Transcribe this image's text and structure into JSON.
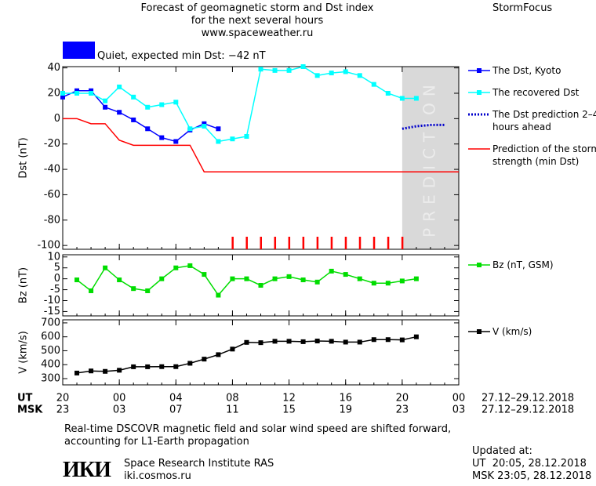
{
  "header": {
    "title": "Forecast of geomagnetic storm and Dst index",
    "subtitle": "for the next several hours",
    "url": "www.spaceweather.ru",
    "brand": "StormFocus"
  },
  "status": {
    "text": "Quiet, expected min Dst: −42 nT",
    "color": "#0000ff"
  },
  "chart_data": [
    {
      "type": "line",
      "ylabel": "Dst (nT)",
      "xlim": [
        0,
        28
      ],
      "ylim": [
        -103,
        41
      ],
      "yticks": [
        40,
        20,
        0,
        -20,
        -40,
        -60,
        -80,
        -100
      ],
      "prediction_region": {
        "x": [
          24,
          28
        ],
        "label": "PREDICTION",
        "color": "#d9d9d9"
      },
      "storm_marks": {
        "x": [
          12,
          13,
          14,
          15,
          16,
          17,
          18,
          19,
          20,
          21,
          22,
          23,
          24
        ],
        "color": "#ff0000"
      },
      "series": [
        {
          "name": "The Dst, Kyoto",
          "color": "#0000ff",
          "style": "solid",
          "marker": true,
          "x": [
            0,
            1,
            2,
            3,
            4,
            5,
            6,
            7,
            8,
            9,
            10,
            11
          ],
          "values": [
            17,
            22,
            22,
            9,
            5,
            -1,
            -8,
            -15,
            -18,
            -9,
            -4,
            -8
          ]
        },
        {
          "name": "The recovered Dst",
          "color": "#00ffff",
          "style": "solid",
          "marker": true,
          "x": [
            0,
            1,
            2,
            3,
            4,
            5,
            6,
            7,
            8,
            9,
            10,
            11,
            12,
            13,
            14,
            15,
            16,
            17,
            18,
            19,
            20,
            21,
            22,
            23,
            24,
            25
          ],
          "values": [
            20,
            20,
            20,
            14,
            25,
            17,
            9,
            11,
            13,
            -8,
            -6,
            -18,
            -16,
            -14,
            39,
            38,
            38,
            41,
            34,
            36,
            37,
            34,
            27,
            20,
            16,
            16
          ]
        },
        {
          "name": "The Dst prediction 2–4 hours ahead",
          "color": "#0000cc",
          "style": "dotted",
          "marker": false,
          "x": [
            24,
            25,
            26,
            27
          ],
          "values": [
            -8,
            -6,
            -5,
            -5
          ]
        },
        {
          "name": "Prediction of the storm strength (min Dst)",
          "color": "#ff0000",
          "style": "solid",
          "marker": false,
          "x": [
            0,
            1,
            2,
            3,
            4,
            5,
            6,
            7,
            8,
            9,
            10,
            11,
            12,
            13,
            14,
            15,
            16,
            17,
            18,
            19,
            20,
            21,
            22,
            23,
            24,
            25,
            26,
            27,
            28
          ],
          "values": [
            0,
            0,
            -4,
            -4,
            -17,
            -21,
            -21,
            -21,
            -21,
            -21,
            -42,
            -42,
            -42,
            -42,
            -42,
            -42,
            -42,
            -42,
            -42,
            -42,
            -42,
            -42,
            -42,
            -42,
            -42,
            -42,
            -42,
            -42,
            -42
          ]
        }
      ]
    },
    {
      "type": "line",
      "ylabel": "Bz (nT)",
      "xlim": [
        0,
        28
      ],
      "ylim": [
        -17,
        11
      ],
      "yticks": [
        10,
        5,
        0,
        -5,
        -10,
        -15
      ],
      "series": [
        {
          "name": "Bz (nT, GSM)",
          "color": "#00dd00",
          "style": "solid",
          "marker": true,
          "x": [
            1,
            2,
            3,
            4,
            5,
            6,
            7,
            8,
            9,
            10,
            11,
            12,
            13,
            14,
            15,
            16,
            17,
            18,
            19,
            20,
            21,
            22,
            23,
            24,
            25
          ],
          "values": [
            -0.5,
            -5.5,
            5,
            -0.5,
            -4.5,
            -5.5,
            0,
            5,
            6,
            2,
            -7.5,
            0,
            0,
            -3,
            0,
            1,
            -0.5,
            -1.5,
            3.5,
            2,
            0,
            -2,
            -2,
            -1,
            0
          ]
        }
      ]
    },
    {
      "type": "line",
      "ylabel": "V (km/s)",
      "xlim": [
        0,
        28
      ],
      "ylim": [
        255,
        722
      ],
      "yticks": [
        300,
        400,
        500,
        600,
        700
      ],
      "xticks": [
        {
          "value": 0,
          "label": "20"
        },
        {
          "value": 4,
          "label": "00"
        },
        {
          "value": 8,
          "label": "04"
        },
        {
          "value": 12,
          "label": "08"
        },
        {
          "value": 16,
          "label": "12"
        },
        {
          "value": 20,
          "label": "16"
        },
        {
          "value": 24,
          "label": "20"
        },
        {
          "value": 28,
          "label": "00"
        }
      ],
      "xticks_msk": [
        "23",
        "03",
        "07",
        "11",
        "15",
        "19",
        "23",
        "03"
      ],
      "ut_label": "UT",
      "msk_label": "MSK",
      "ut_range": "27.12–29.12.2018",
      "msk_range": "27.12–29.12.2018",
      "series": [
        {
          "name": "V (km/s)",
          "color": "#000000",
          "style": "solid",
          "marker": true,
          "x": [
            1,
            2,
            3,
            4,
            5,
            6,
            7,
            8,
            9,
            10,
            11,
            12,
            13,
            14,
            15,
            16,
            17,
            18,
            19,
            20,
            21,
            22,
            23,
            24,
            25
          ],
          "values": [
            340,
            355,
            352,
            360,
            385,
            385,
            386,
            386,
            410,
            440,
            472,
            512,
            560,
            558,
            568,
            568,
            565,
            570,
            568,
            562,
            562,
            580,
            580,
            578,
            600
          ]
        }
      ]
    }
  ],
  "footer": {
    "note": "Real-time DSCOVR magnetic field and solar wind speed are shifted forward, accounting for L1-Earth propagation",
    "logo": "ИКИ",
    "institute": "Space Research Institute RAS",
    "site": "iki.cosmos.ru",
    "updated": "Updated at:",
    "updated_ut": "UT  20:05, 28.12.2018",
    "updated_msk": "MSK 23:05, 28.12.2018"
  }
}
